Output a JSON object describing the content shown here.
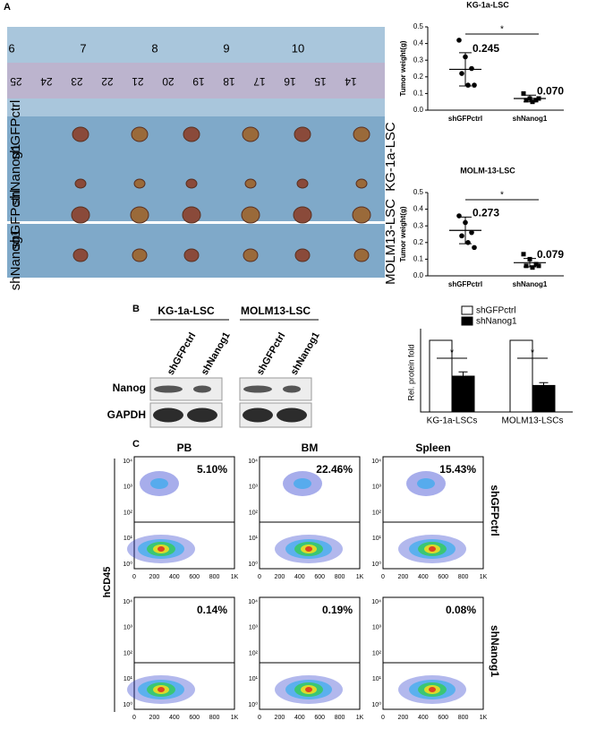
{
  "panel_labels": [
    "A",
    "B",
    "C"
  ],
  "photo": {
    "ruler_top": [
      "6",
      "7",
      "8",
      "9",
      "10"
    ],
    "ruler_bottom": [
      "25",
      "24",
      "23",
      "22",
      "21",
      "20",
      "19",
      "18",
      "17",
      "16",
      "15",
      "14"
    ],
    "row_labels": [
      "shGFPctrl",
      "shNanog1",
      "shGFPctrl",
      "shNanog1"
    ],
    "side_labels": [
      "KG-1a-LSC",
      "MOLM13-LSC"
    ]
  },
  "chart_data": [
    {
      "type": "dotplot",
      "title": "KG-1a-LSC",
      "y_label": "Tumor weight(g)",
      "categories": [
        "shGFPctrl",
        "shNanog1"
      ],
      "points": [
        [
          0.42,
          0.32,
          0.25,
          0.22,
          0.15,
          0.15
        ],
        [
          0.1,
          0.07,
          0.06,
          0.06,
          0.05,
          0.07
        ]
      ],
      "values": [
        0.245,
        0.07
      ],
      "value_labels": [
        "0.245",
        "0.070"
      ],
      "errors": [
        0.1,
        0.02
      ],
      "significance": "*",
      "ylim": [
        0,
        0.5
      ],
      "yticks": [
        {
          "value": 0,
          "label": "0.0"
        },
        0.1,
        0.2,
        0.3,
        0.4,
        0.5
      ]
    },
    {
      "type": "dotplot",
      "title": "MOLM-13-LSC",
      "y_label": "Tumor weight(g)",
      "categories": [
        "shGFPctrl",
        "shNanog1"
      ],
      "points": [
        [
          0.36,
          0.32,
          0.26,
          0.24,
          0.2,
          0.17
        ],
        [
          0.13,
          0.1,
          0.07,
          0.06,
          0.05,
          0.06
        ]
      ],
      "values": [
        0.273,
        0.079
      ],
      "value_labels": [
        "0.273",
        "0.079"
      ],
      "errors": [
        0.08,
        0.025
      ],
      "significance": "*",
      "ylim": [
        0,
        0.5
      ],
      "yticks": [
        {
          "value": 0,
          "label": "0.0"
        },
        0.1,
        0.2,
        0.3,
        0.4,
        0.5
      ]
    },
    {
      "type": "bar",
      "y_label": "Rel. protein fold",
      "categories": [
        "KG-1a-LSCs",
        "MOLM13-LSCs"
      ],
      "series": [
        {
          "name": "shGFPctrl",
          "color": "#ffffff",
          "values": [
            1,
            1
          ],
          "errors": [
            0,
            0
          ]
        },
        {
          "name": "shNanog1",
          "color": "#000000",
          "values": [
            0.5,
            0.37
          ],
          "errors": [
            0.06,
            0.04
          ]
        }
      ],
      "significance": [
        "*",
        "*"
      ],
      "ylim": [
        0,
        1.1
      ],
      "legend": "upper right"
    }
  ],
  "blot": {
    "groups": [
      "KG-1a-LSC",
      "MOLM13-LSC"
    ],
    "lanes": [
      "shGFPctrl",
      "shNanog1",
      "shGFPctrl",
      "shNanog1"
    ],
    "rows": [
      "Nanog",
      "GAPDH"
    ]
  },
  "flow": {
    "columns": [
      "PB",
      "BM",
      "Spleen"
    ],
    "rows": [
      "shGFPctrl",
      "shNanog1"
    ],
    "y_label": "hCD45",
    "percents": [
      [
        "5.10%",
        "22.46%",
        "15.43%"
      ],
      [
        "0.14%",
        "0.19%",
        "0.08%"
      ]
    ],
    "xticks": [
      "0",
      "200",
      "400",
      "600",
      "800",
      "1K"
    ],
    "yticks": [
      "10⁰",
      "10¹",
      "10²",
      "10³",
      "10⁴"
    ]
  }
}
